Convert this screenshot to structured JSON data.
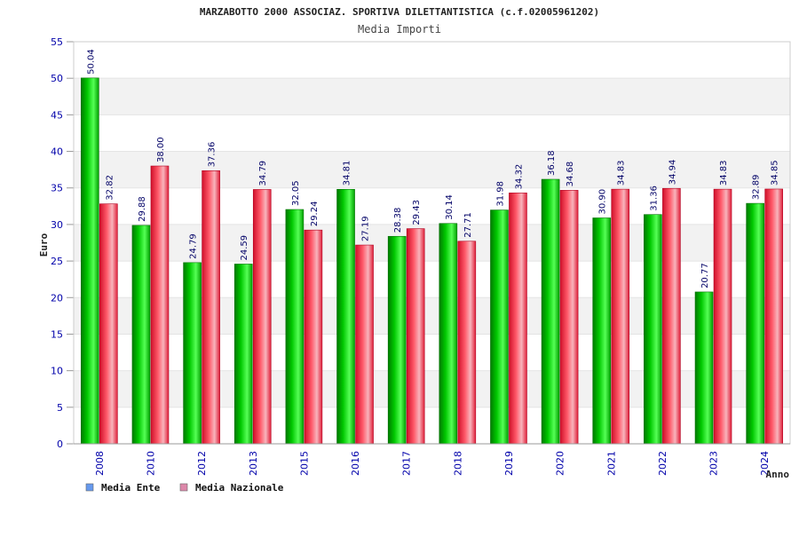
{
  "chart_data": {
    "type": "bar",
    "title": "MARZABOTTO 2000 ASSOCIAZ. SPORTIVA DILETTANTISTICA (c.f.02005961202)",
    "subtitle": "Media Importi",
    "xlabel": "Anno",
    "ylabel": "Euro",
    "ylim": [
      0,
      55
    ],
    "yticks": [
      0,
      5,
      10,
      15,
      20,
      25,
      30,
      35,
      40,
      45,
      50,
      55
    ],
    "grid": true,
    "legend_position": "bottom-left",
    "categories": [
      "2008",
      "2010",
      "2012",
      "2013",
      "2015",
      "2016",
      "2017",
      "2018",
      "2019",
      "2020",
      "2021",
      "2022",
      "2023",
      "2024"
    ],
    "series": [
      {
        "name": "Media Ente",
        "color": "#00c000",
        "legend_color": "#6699ee",
        "values": [
          50.04,
          29.88,
          24.79,
          24.59,
          32.05,
          34.81,
          28.38,
          30.14,
          31.98,
          36.18,
          30.9,
          31.36,
          20.77,
          32.89
        ],
        "labels": [
          "50.04",
          "29.88",
          "24.79",
          "24.59",
          "32.05",
          "34.81",
          "28.38",
          "30.14",
          "31.98",
          "36.18",
          "30.90",
          "31.36",
          "20.77",
          "32.89"
        ]
      },
      {
        "name": "Media Nazionale",
        "color": "#e02030",
        "legend_color": "#dd88aa",
        "values": [
          32.82,
          38.0,
          37.36,
          34.79,
          29.24,
          27.19,
          29.43,
          27.71,
          34.32,
          34.68,
          34.83,
          34.94,
          34.83,
          34.85
        ],
        "labels": [
          "32.82",
          "38.00",
          "37.36",
          "34.79",
          "29.24",
          "27.19",
          "29.43",
          "27.71",
          "34.32",
          "34.68",
          "34.83",
          "34.94",
          "34.83",
          "34.85"
        ]
      }
    ]
  }
}
